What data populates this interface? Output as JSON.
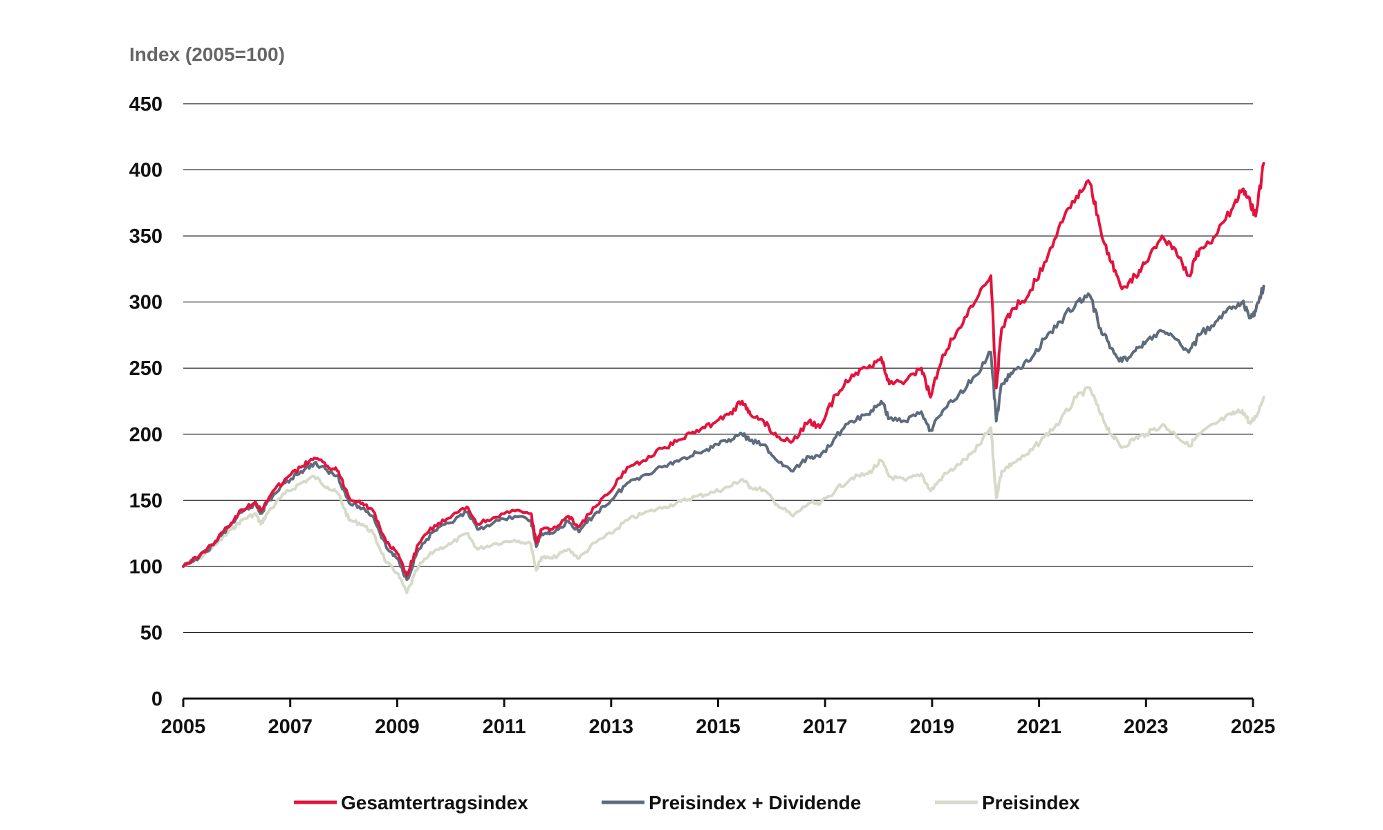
{
  "chart_data": {
    "type": "line",
    "ylabel": "Index (2005=100)",
    "xlabel": "",
    "xlim": [
      2005,
      2025.2
    ],
    "ylim": [
      0,
      450
    ],
    "y_ticks": [
      0,
      50,
      100,
      150,
      200,
      250,
      300,
      350,
      400,
      450
    ],
    "x_ticks": [
      2005,
      2007,
      2009,
      2011,
      2013,
      2015,
      2017,
      2019,
      2021,
      2023,
      2025
    ],
    "grid": "horizontal",
    "legend_position": "bottom",
    "series": [
      {
        "name": "Preisindex",
        "color": "#d6dac9",
        "x": [
          2005.0,
          2005.3,
          2005.6,
          2005.9,
          2006.1,
          2006.35,
          2006.45,
          2006.6,
          2006.9,
          2007.2,
          2007.45,
          2007.7,
          2007.9,
          2008.1,
          2008.35,
          2008.55,
          2008.8,
          2009.0,
          2009.18,
          2009.4,
          2009.7,
          2010.0,
          2010.3,
          2010.5,
          2010.8,
          2011.2,
          2011.5,
          2011.6,
          2011.7,
          2011.9,
          2012.2,
          2012.4,
          2012.7,
          2013.0,
          2013.3,
          2013.6,
          2014.0,
          2014.3,
          2014.6,
          2014.9,
          2015.2,
          2015.45,
          2015.6,
          2015.85,
          2016.1,
          2016.4,
          2016.7,
          2016.9,
          2017.2,
          2017.5,
          2017.8,
          2018.05,
          2018.2,
          2018.5,
          2018.8,
          2018.97,
          2019.2,
          2019.5,
          2019.8,
          2020.1,
          2020.2,
          2020.3,
          2020.5,
          2020.8,
          2021.1,
          2021.4,
          2021.7,
          2021.95,
          2022.15,
          2022.35,
          2022.55,
          2022.8,
          2023.0,
          2023.3,
          2023.55,
          2023.8,
          2024.0,
          2024.3,
          2024.6,
          2024.8,
          2024.95,
          2025.05,
          2025.2
        ],
        "y": [
          100,
          106,
          116,
          128,
          135,
          140,
          132,
          142,
          155,
          163,
          168,
          160,
          155,
          135,
          132,
          125,
          103,
          95,
          80,
          100,
          112,
          117,
          125,
          113,
          117,
          120,
          117,
          97,
          107,
          106,
          113,
          106,
          118,
          125,
          135,
          140,
          145,
          149,
          153,
          156,
          160,
          166,
          160,
          158,
          147,
          138,
          148,
          147,
          158,
          167,
          170,
          180,
          168,
          165,
          170,
          157,
          168,
          177,
          187,
          205,
          152,
          172,
          178,
          185,
          198,
          210,
          228,
          235,
          215,
          200,
          190,
          197,
          200,
          207,
          200,
          191,
          200,
          208,
          215,
          218,
          208,
          213,
          228
        ]
      },
      {
        "name": "Preisindex + Dividende",
        "color": "#5e6b7c",
        "x": [
          2005.0,
          2005.3,
          2005.6,
          2005.9,
          2006.1,
          2006.35,
          2006.45,
          2006.6,
          2006.9,
          2007.2,
          2007.45,
          2007.7,
          2007.9,
          2008.1,
          2008.35,
          2008.55,
          2008.8,
          2009.0,
          2009.18,
          2009.4,
          2009.7,
          2010.0,
          2010.3,
          2010.5,
          2010.8,
          2011.2,
          2011.5,
          2011.6,
          2011.7,
          2011.9,
          2012.2,
          2012.4,
          2012.7,
          2013.0,
          2013.3,
          2013.6,
          2014.0,
          2014.3,
          2014.6,
          2014.9,
          2015.2,
          2015.45,
          2015.6,
          2015.85,
          2016.1,
          2016.4,
          2016.7,
          2016.9,
          2017.2,
          2017.5,
          2017.8,
          2018.05,
          2018.2,
          2018.5,
          2018.8,
          2018.97,
          2019.2,
          2019.5,
          2019.8,
          2020.1,
          2020.2,
          2020.3,
          2020.5,
          2020.8,
          2021.1,
          2021.4,
          2021.7,
          2021.95,
          2022.15,
          2022.35,
          2022.55,
          2022.8,
          2023.0,
          2023.3,
          2023.55,
          2023.8,
          2024.0,
          2024.3,
          2024.6,
          2024.8,
          2024.95,
          2025.05,
          2025.2
        ],
        "y": [
          100,
          107,
          118,
          132,
          141,
          147,
          140,
          150,
          163,
          172,
          178,
          172,
          168,
          148,
          144,
          138,
          114,
          106,
          90,
          113,
          127,
          133,
          141,
          128,
          133,
          138,
          135,
          115,
          125,
          125,
          134,
          126,
          140,
          150,
          163,
          169,
          176,
          181,
          186,
          190,
          196,
          200,
          195,
          192,
          180,
          172,
          183,
          183,
          198,
          210,
          215,
          225,
          212,
          210,
          217,
          203,
          218,
          230,
          244,
          262,
          210,
          238,
          246,
          255,
          272,
          285,
          300,
          305,
          280,
          265,
          255,
          263,
          270,
          278,
          272,
          262,
          275,
          285,
          295,
          300,
          288,
          293,
          312
        ]
      },
      {
        "name": "Gesamtertragsindex",
        "color": "#e2143d",
        "x": [
          2005.0,
          2005.3,
          2005.6,
          2005.9,
          2006.1,
          2006.35,
          2006.45,
          2006.6,
          2006.9,
          2007.2,
          2007.45,
          2007.7,
          2007.9,
          2008.1,
          2008.35,
          2008.55,
          2008.8,
          2009.0,
          2009.18,
          2009.4,
          2009.7,
          2010.0,
          2010.3,
          2010.5,
          2010.8,
          2011.2,
          2011.5,
          2011.6,
          2011.7,
          2011.9,
          2012.2,
          2012.4,
          2012.7,
          2013.0,
          2013.3,
          2013.6,
          2014.0,
          2014.3,
          2014.6,
          2014.9,
          2015.2,
          2015.45,
          2015.6,
          2015.85,
          2016.1,
          2016.4,
          2016.7,
          2016.9,
          2017.2,
          2017.5,
          2017.8,
          2018.05,
          2018.2,
          2018.5,
          2018.8,
          2018.97,
          2019.2,
          2019.5,
          2019.8,
          2020.1,
          2020.2,
          2020.3,
          2020.5,
          2020.8,
          2021.1,
          2021.4,
          2021.7,
          2021.95,
          2022.15,
          2022.35,
          2022.55,
          2022.8,
          2023.0,
          2023.3,
          2023.55,
          2023.8,
          2024.0,
          2024.3,
          2024.6,
          2024.8,
          2024.95,
          2025.05,
          2025.2
        ],
        "y": [
          100,
          108,
          119,
          133,
          143,
          149,
          142,
          152,
          166,
          175,
          182,
          176,
          172,
          152,
          148,
          142,
          118,
          110,
          93,
          117,
          131,
          137,
          145,
          132,
          137,
          142,
          140,
          118,
          128,
          128,
          138,
          130,
          145,
          157,
          175,
          180,
          190,
          196,
          203,
          208,
          215,
          225,
          215,
          210,
          198,
          195,
          210,
          205,
          230,
          245,
          250,
          258,
          238,
          240,
          250,
          228,
          260,
          280,
          300,
          320,
          235,
          280,
          295,
          305,
          330,
          360,
          380,
          390,
          355,
          330,
          310,
          320,
          330,
          350,
          340,
          320,
          340,
          350,
          370,
          385,
          375,
          365,
          405
        ]
      }
    ],
    "legend": [
      "Gesamtertragsindex",
      "Preisindex + Dividende",
      "Preisindex"
    ]
  }
}
